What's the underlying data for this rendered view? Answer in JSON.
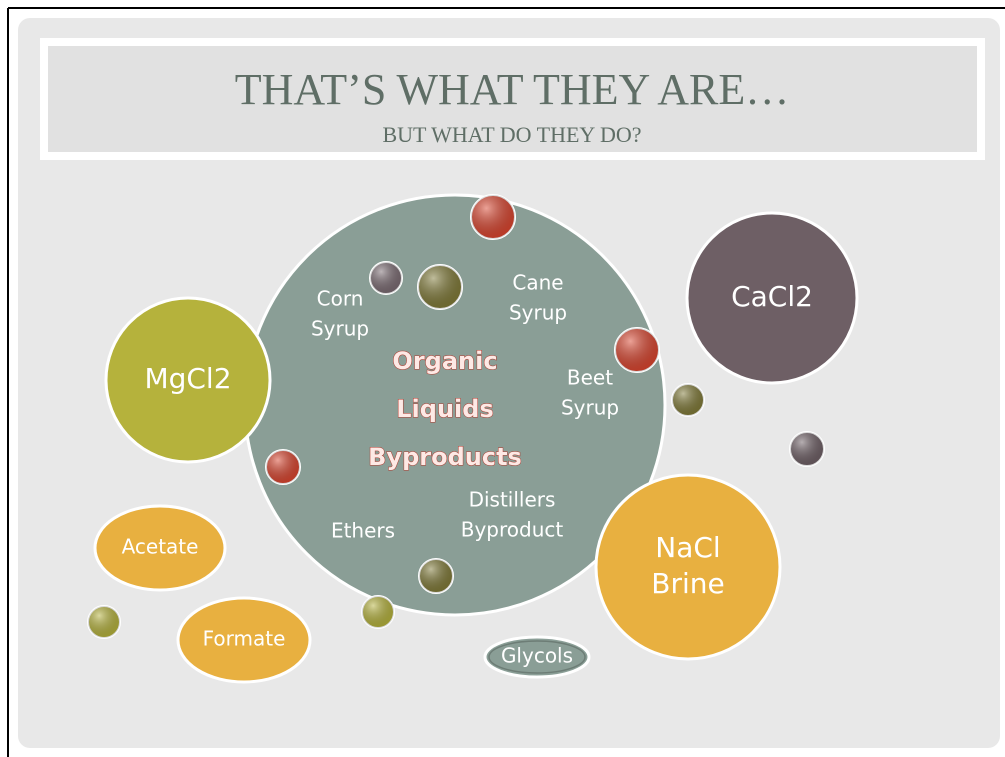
{
  "header": {
    "title": "THAT’S WHAT THEY ARE…",
    "subtitle": "BUT WHAT DO THEY DO?"
  },
  "center": {
    "lines": [
      "Organic",
      "Liquids",
      "Byproducts"
    ]
  },
  "inner_labels": [
    {
      "lines": [
        "Corn",
        "Syrup"
      ]
    },
    {
      "lines": [
        "Cane",
        "Syrup"
      ]
    },
    {
      "lines": [
        "Beet",
        "Syrup"
      ]
    },
    {
      "lines": [
        "Distillers",
        "Byproduct"
      ]
    },
    {
      "lines": [
        "Ethers"
      ]
    }
  ],
  "bubbles": [
    {
      "lines": [
        "MgCl2"
      ]
    },
    {
      "lines": [
        "CaCl2"
      ]
    },
    {
      "lines": [
        "NaCl",
        "Brine"
      ]
    },
    {
      "lines": [
        "Acetate"
      ]
    },
    {
      "lines": [
        "Formate"
      ]
    },
    {
      "lines": [
        "Glycols"
      ]
    }
  ]
}
